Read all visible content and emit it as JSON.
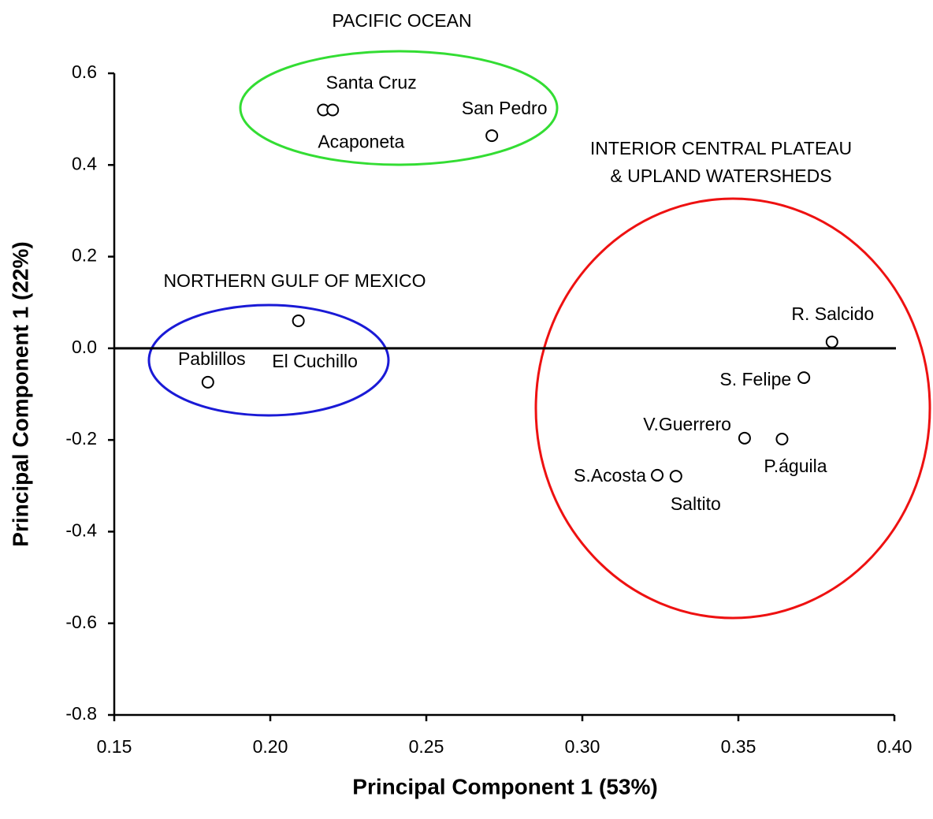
{
  "chart_data": {
    "type": "scatter",
    "x_label": "Principal Component 1 (53%)",
    "y_label": "Principal Component 1 (22%)",
    "annotations": [
      "PACIFIC OCEAN",
      "INTERIOR CENTRAL PLATEAU",
      "& UPLAND WATERSHEDS",
      "NORTHERN GULF OF MEXICO"
    ],
    "labels": [
      "Acaponeta",
      "Santa Cruz",
      "San Pedro",
      "El Cuchillo",
      "Pablillos",
      "R. Salcido",
      "S. Felipe",
      "V.Guerrero",
      "P.águila",
      "S.Acosta",
      "Saltito"
    ],
    "x": [
      0.217,
      0.22,
      0.271,
      0.209,
      0.18,
      0.38,
      0.371,
      0.352,
      0.364,
      0.324,
      0.33
    ],
    "y": [
      0.52,
      0.52,
      0.464,
      0.06,
      -0.074,
      0.014,
      -0.064,
      -0.196,
      -0.198,
      -0.277,
      -0.279
    ],
    "xlim": [
      0.15,
      0.4
    ],
    "ylim": [
      -0.8,
      0.6
    ],
    "xticks": [
      0.15,
      {
        "value": 0.2,
        "label": "0.20"
      },
      0.25,
      {
        "value": 0.3,
        "label": "0.30"
      },
      0.35,
      {
        "value": 0.4,
        "label": "0.40"
      }
    ],
    "yticks": [
      0.6,
      0.4,
      0.2,
      {
        "value": 0,
        "label": "0.0"
      },
      -0.2,
      -0.4,
      -0.6,
      -0.8
    ]
  }
}
